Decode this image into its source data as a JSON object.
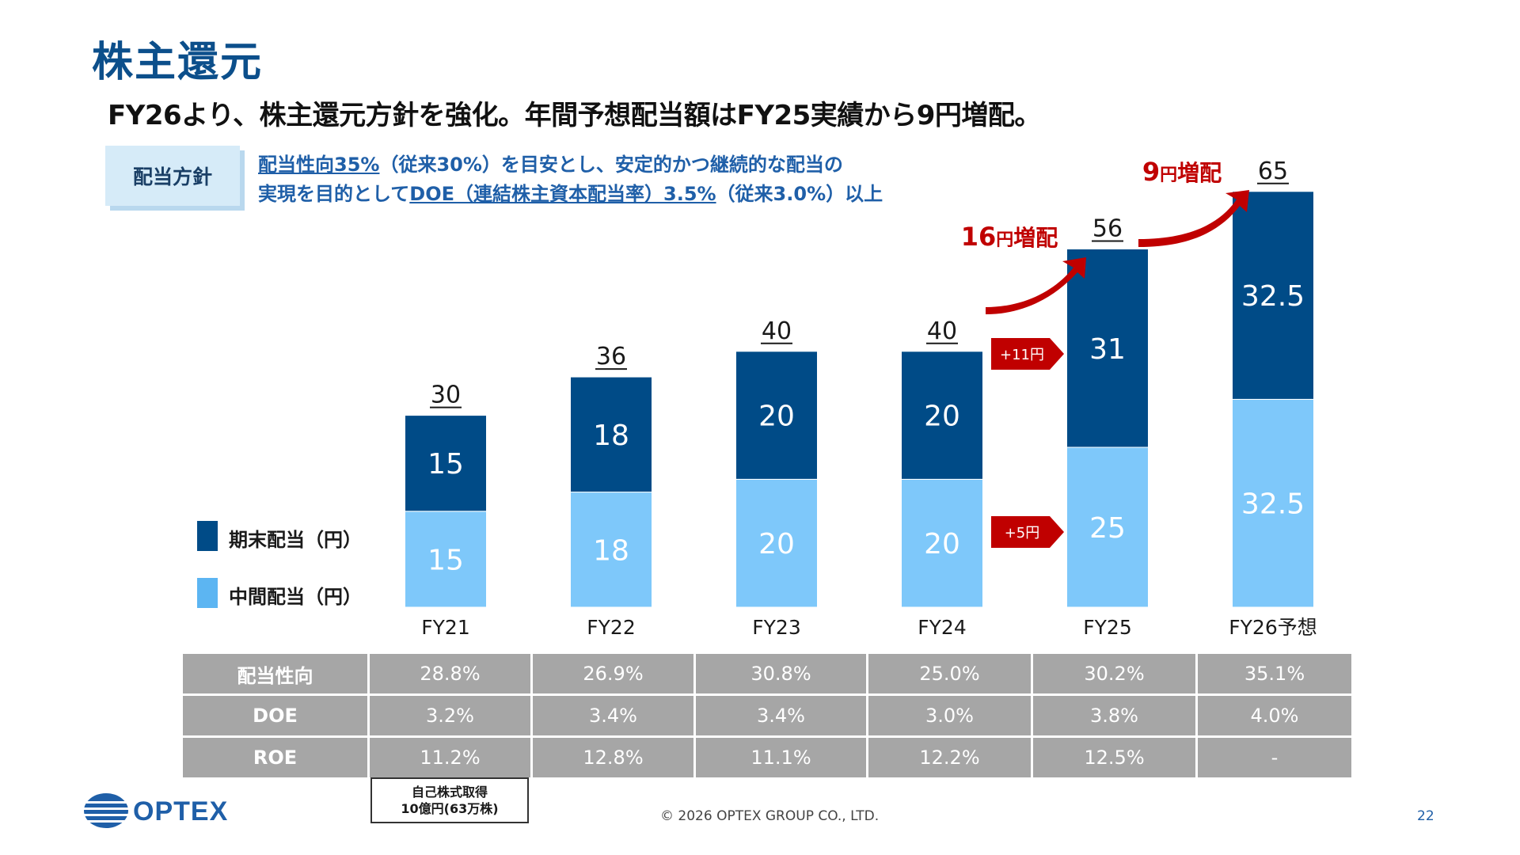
{
  "title": "株主還元",
  "subtitle": "FY26より、株主還元方針を強化。年間予想配当額はFY25実績から9円増配。",
  "policy": {
    "label": "配当方針",
    "line1_underlined": "配当性向35%",
    "line1_rest": "（従来30%）を目安とし、安定的かつ継続的な配当の",
    "line2_plain": "実現を目的として",
    "line2_underlined": "DOE（連結株主資本配当率）3.5%",
    "line2_rest": "（従来3.0%）以上"
  },
  "legend": {
    "period_end": "期末配当（円）",
    "interim": "中間配当（円）"
  },
  "colors": {
    "period_end": "#004b87",
    "interim": "#7ec8fa",
    "accent_red": "#c00000",
    "title_blue": "#0c4f8b"
  },
  "chart_data": {
    "type": "bar",
    "stacked": true,
    "categories": [
      "FY21",
      "FY22",
      "FY23",
      "FY24",
      "FY25",
      "FY26予想"
    ],
    "series": [
      {
        "name": "中間配当（円）",
        "values": [
          15,
          18,
          20,
          20,
          25,
          32.5
        ]
      },
      {
        "name": "期末配当（円）",
        "values": [
          15,
          18,
          20,
          20,
          31,
          32.5
        ]
      }
    ],
    "totals": [
      "30",
      "36",
      "40",
      "40",
      "56",
      "65"
    ],
    "value_labels": {
      "interim": [
        "15",
        "18",
        "20",
        "20",
        "25",
        "32.5"
      ],
      "period_end": [
        "15",
        "18",
        "20",
        "20",
        "31",
        "32.5"
      ]
    },
    "annotations": {
      "increase_fy25_prefix": "16",
      "increase_fy25_unit": "円",
      "increase_fy25_suffix": "増配",
      "increase_fy26_prefix": "9",
      "increase_fy26_unit": "円",
      "increase_fy26_suffix": "増配",
      "period_end_delta": "+11円",
      "interim_delta": "+5円"
    }
  },
  "table": {
    "rows": [
      {
        "label": "配当性向",
        "values": [
          "28.8%",
          "26.9%",
          "30.8%",
          "25.0%",
          "30.2%",
          "35.1%"
        ]
      },
      {
        "label": "DOE",
        "values": [
          "3.2%",
          "3.4%",
          "3.4%",
          "3.0%",
          "3.8%",
          "4.0%"
        ]
      },
      {
        "label": "ROE",
        "values": [
          "11.2%",
          "12.8%",
          "11.1%",
          "12.2%",
          "12.5%",
          "-"
        ]
      }
    ]
  },
  "buyback": {
    "line1": "自己株式取得",
    "line2": "10億円(63万株)"
  },
  "logo_text": "OPTEX",
  "copyright": "© 2026 OPTEX GROUP CO., LTD.",
  "page_number": "22"
}
